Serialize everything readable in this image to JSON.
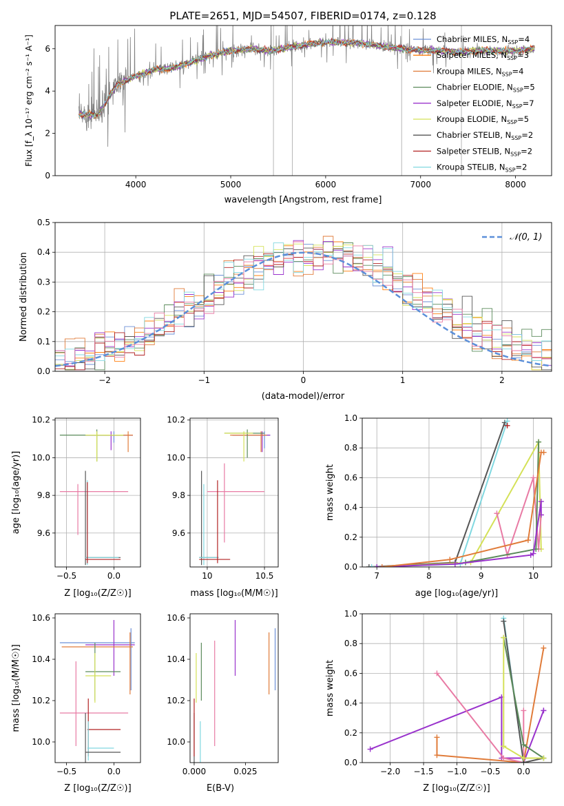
{
  "figure": {
    "title": "PLATE=2651, MJD=54507, FIBERID=0174, z=0.128"
  },
  "colors": {
    "chabrier_miles": "#6b8fd6",
    "salpeter_miles": "#ff7f0e",
    "kroupa_miles": "#e07b39",
    "chabrier_elodie": "#5a8a5a",
    "salpeter_elodie": "#9932cc",
    "kroupa_elodie": "#d4e157",
    "chabrier_stelib": "#555555",
    "salpeter_stelib": "#b22222",
    "kroupa_stelib": "#80d8e0",
    "spectrum_grey": "#7f7f7f",
    "normal_curve": "#5b8fd9",
    "pink": "#e87aa4"
  },
  "chart_data": [
    {
      "id": "spectrum",
      "type": "line",
      "xlabel": "wavelength [Angstrom, rest frame]",
      "ylabel": "Flux [f_λ 10⁻¹⁷ erg cm⁻² s⁻¹ A⁻¹]",
      "xlim": [
        3150,
        8380
      ],
      "ylim": [
        0,
        7.1
      ],
      "xticks": [
        "4000",
        "5000",
        "6000",
        "7000",
        "8000"
      ],
      "yticks": [
        "0",
        "2",
        "4",
        "6"
      ],
      "grid": false,
      "legend_position": "top-right",
      "legend": [
        {
          "label": "Chabrier MILES, N",
          "sub": "SSP",
          "suffix": "=4",
          "color": "#6b8fd6"
        },
        {
          "label": "Salpeter MILES, N",
          "sub": "SSP",
          "suffix": "=3",
          "color": "#ff7f0e"
        },
        {
          "label": "Kroupa MILES, N",
          "sub": "SSP",
          "suffix": "=4",
          "color": "#e07b39"
        },
        {
          "label": "Chabrier ELODIE, N",
          "sub": "SSP",
          "suffix": "=5",
          "color": "#5a8a5a"
        },
        {
          "label": "Salpeter ELODIE, N",
          "sub": "SSP",
          "suffix": "=7",
          "color": "#9932cc"
        },
        {
          "label": "Kroupa ELODIE, N",
          "sub": "SSP",
          "suffix": "=5",
          "color": "#d4e157"
        },
        {
          "label": "Chabrier STELIB, N",
          "sub": "SSP",
          "suffix": "=2",
          "color": "#555555"
        },
        {
          "label": "Salpeter STELIB, N",
          "sub": "SSP",
          "suffix": "=2",
          "color": "#b22222"
        },
        {
          "label": "Kroupa STELIB, N",
          "sub": "SSP",
          "suffix": "=2",
          "color": "#80d8e0"
        }
      ],
      "continuum": {
        "x": [
          3400,
          3600,
          3800,
          4000,
          4200,
          4400,
          4600,
          4800,
          5000,
          5200,
          5400,
          5600,
          5800,
          6000,
          6200,
          6400,
          6600,
          6800,
          7000,
          7200,
          7400,
          7600,
          7800,
          8000,
          8200
        ],
        "y": [
          2.9,
          2.85,
          4.3,
          4.7,
          5.0,
          5.1,
          5.4,
          5.7,
          5.9,
          6.0,
          5.9,
          6.05,
          6.2,
          6.3,
          6.3,
          6.25,
          6.1,
          6.0,
          5.95,
          5.9,
          5.85,
          5.9,
          5.9,
          5.9,
          6.0
        ]
      }
    },
    {
      "id": "residuals",
      "type": "histogram",
      "xlabel": "(data-model)/error",
      "ylabel": "Normed distribution",
      "xlim": [
        -2.5,
        2.5
      ],
      "ylim": [
        0,
        0.5
      ],
      "xticks": [
        "−2",
        "−1",
        "0",
        "1",
        "2"
      ],
      "yticks": [
        "0.0",
        "0.1",
        "0.2",
        "0.3",
        "0.4",
        "0.5"
      ],
      "grid": true,
      "legend_position": "top-right",
      "legend": [
        {
          "label": "𝒩(0, 1)",
          "color": "#5b8fd9",
          "style": "dashed"
        }
      ],
      "bin_width": 0.1
    },
    {
      "id": "age_vs_Z",
      "type": "errorbar",
      "xlabel": "Z [log₁₀(Z/Z☉)]",
      "ylabel": "age  [log₁₀(age/yr)]",
      "xlim": [
        -0.62,
        0.28
      ],
      "ylim": [
        9.42,
        10.21
      ],
      "xticks": [
        "−0.5",
        "0.0"
      ],
      "yticks": [
        "9.6",
        "9.8",
        "10.0",
        "10.2"
      ],
      "grid": true
    },
    {
      "id": "age_vs_mass",
      "type": "errorbar",
      "xlabel": "mass [log₁₀(M/M☉)]",
      "xlim": [
        9.85,
        10.62
      ],
      "ylim": [
        9.42,
        10.21
      ],
      "xticks": [
        "10",
        "10.5"
      ],
      "yticks": [
        "9.6",
        "9.8",
        "10.0",
        "10.2"
      ],
      "grid": true
    },
    {
      "id": "massweight_vs_age",
      "type": "line",
      "xlabel": "age  [log₁₀(age/yr)]",
      "ylabel": "mass weight",
      "xlim": [
        6.72,
        10.35
      ],
      "ylim": [
        0,
        1
      ],
      "xticks": [
        "7",
        "8",
        "9",
        "10"
      ],
      "yticks": [
        "0.0",
        "0.2",
        "0.4",
        "0.6",
        "0.8",
        "1.0"
      ],
      "grid": true,
      "series": [
        {
          "color": "#555555",
          "x": [
            6.85,
            8.5,
            9.45
          ],
          "y": [
            0.0,
            0.03,
            0.97
          ]
        },
        {
          "color": "#80d8e0",
          "x": [
            6.9,
            8.6,
            9.5
          ],
          "y": [
            0.0,
            0.02,
            0.98
          ]
        },
        {
          "color": "#b22222",
          "x": [
            9.5
          ],
          "y": [
            0.95
          ]
        },
        {
          "color": "#d4e157",
          "x": [
            7.0,
            8.8,
            10.1,
            10.15
          ],
          "y": [
            0.0,
            0.03,
            0.84,
            0.12
          ]
        },
        {
          "color": "#e87aa4",
          "x": [
            9.3,
            9.5,
            10.0,
            10.1,
            10.15
          ],
          "y": [
            0.36,
            0.08,
            0.6,
            0.12,
            0.35
          ]
        },
        {
          "color": "#5a8a5a",
          "x": [
            8.7,
            10.05,
            10.1
          ],
          "y": [
            0.03,
            0.12,
            0.84
          ]
        },
        {
          "color": "#9932cc",
          "x": [
            7.0,
            8.5,
            9.95,
            10.0,
            10.15,
            10.15
          ],
          "y": [
            0.0,
            0.02,
            0.08,
            0.09,
            0.44,
            0.35
          ]
        },
        {
          "color": "#e07b39",
          "x": [
            7.1,
            8.4,
            9.9,
            10.15,
            10.2
          ],
          "y": [
            0.0,
            0.05,
            0.18,
            0.77,
            0.77
          ]
        }
      ]
    },
    {
      "id": "mass_vs_Z",
      "type": "errorbar",
      "xlabel": "Z [log₁₀(Z/Z☉)]",
      "ylabel": "mass [log₁₀(M/M☉)]",
      "xlim": [
        -0.62,
        0.28
      ],
      "ylim": [
        9.9,
        10.62
      ],
      "xticks": [
        "−0.5",
        "0.0"
      ],
      "yticks": [
        "10.0",
        "10.2",
        "10.4",
        "10.6"
      ],
      "grid": false
    },
    {
      "id": "mass_vs_ebv",
      "type": "errorbar",
      "xlabel": "E(B-V)",
      "xlim": [
        -0.002,
        0.041
      ],
      "ylim": [
        9.9,
        10.62
      ],
      "xticks": [
        "0.000",
        "0.025"
      ],
      "yticks": [
        "10.0",
        "10.2",
        "10.4",
        "10.6"
      ],
      "grid": false
    },
    {
      "id": "massweight_vs_Z",
      "type": "line",
      "xlabel": "Z [log₁₀(Z/Z☉)]",
      "ylabel": "mass weight",
      "xlim": [
        -2.42,
        0.42
      ],
      "ylim": [
        0,
        1
      ],
      "xticks": [
        "−2.0",
        "−1.5",
        "−1.0",
        "−0.5",
        "0.0"
      ],
      "yticks": [
        "0.0",
        "0.2",
        "0.4",
        "0.6",
        "0.8",
        "1.0"
      ],
      "grid": true,
      "series": [
        {
          "color": "#9932cc",
          "x": [
            -2.3,
            -0.33,
            -0.33,
            0.0,
            0.0,
            0.3,
            0.3
          ],
          "y": [
            0.09,
            0.44,
            0.03,
            0.03,
            0.0,
            0.35,
            0.35
          ]
        },
        {
          "color": "#e07b39",
          "x": [
            -1.3,
            -1.3,
            0.0,
            0.3
          ],
          "y": [
            0.17,
            0.05,
            0.0,
            0.77
          ]
        },
        {
          "color": "#e87aa4",
          "x": [
            -1.3,
            -0.3,
            0.0,
            0.0
          ],
          "y": [
            0.6,
            0.03,
            0.0,
            0.35
          ]
        },
        {
          "color": "#80d8e0",
          "x": [
            -0.3,
            0.0
          ],
          "y": [
            0.97,
            0.0
          ]
        },
        {
          "color": "#555555",
          "x": [
            -0.3,
            0.0,
            0.3
          ],
          "y": [
            0.95,
            0.0,
            0.03
          ]
        },
        {
          "color": "#5a8a5a",
          "x": [
            -0.3,
            0.0,
            0.3
          ],
          "y": [
            0.84,
            0.12,
            0.03
          ]
        },
        {
          "color": "#d4e157",
          "x": [
            -0.3,
            -0.3,
            0.0,
            0.3
          ],
          "y": [
            0.84,
            0.11,
            0.03,
            0.03
          ]
        }
      ]
    }
  ]
}
